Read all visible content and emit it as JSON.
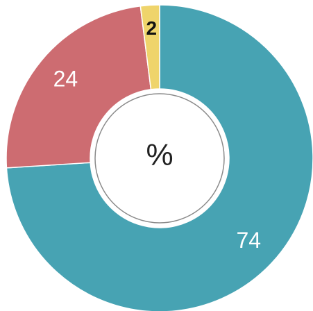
{
  "chart_data": {
    "type": "donut",
    "categories": [
      null,
      null,
      null
    ],
    "values": [
      74,
      24,
      2
    ],
    "colors": [
      "#47a3b3",
      "#cd6c71",
      "#efd46b"
    ],
    "center_label": "%"
  }
}
